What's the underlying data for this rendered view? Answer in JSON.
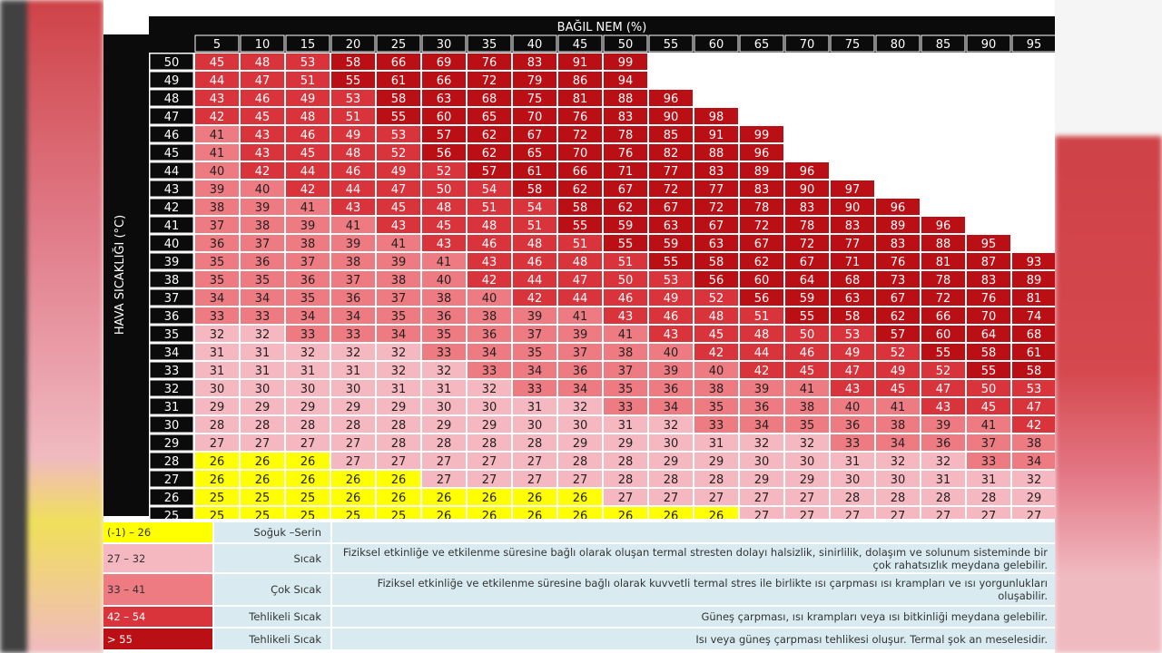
{
  "colors": {
    "yellow": "#ffff00",
    "pink": "#f6b8c0",
    "salmon": "#ee7a82",
    "red": "#d9333b",
    "darkred": "#bb0f16",
    "header_bg": "#0b0b0b",
    "legend_bg": "#d9ebf1"
  },
  "chart_data": {
    "type": "heatmap",
    "xlabel": "BAĞIL NEM (%)",
    "ylabel": "HAVA SICAKLIĞI (°C)",
    "x": [
      5,
      10,
      15,
      20,
      25,
      30,
      35,
      40,
      45,
      50,
      55,
      60,
      65,
      70,
      75,
      80,
      85,
      90,
      95
    ],
    "y": [
      50,
      49,
      48,
      47,
      46,
      45,
      44,
      43,
      42,
      41,
      40,
      39,
      38,
      37,
      36,
      35,
      34,
      33,
      32,
      31,
      30,
      29,
      28,
      27,
      26,
      25
    ],
    "values": [
      [
        45,
        48,
        53,
        58,
        66,
        69,
        76,
        83,
        91,
        99,
        null,
        null,
        null,
        null,
        null,
        null,
        null,
        null,
        null
      ],
      [
        44,
        47,
        51,
        55,
        61,
        66,
        72,
        79,
        86,
        94,
        null,
        null,
        null,
        null,
        null,
        null,
        null,
        null,
        null
      ],
      [
        43,
        46,
        49,
        53,
        58,
        63,
        68,
        75,
        81,
        88,
        96,
        null,
        null,
        null,
        null,
        null,
        null,
        null,
        null
      ],
      [
        42,
        45,
        48,
        51,
        55,
        60,
        65,
        70,
        76,
        83,
        90,
        98,
        null,
        null,
        null,
        null,
        null,
        null,
        null
      ],
      [
        41,
        43,
        46,
        49,
        53,
        57,
        62,
        67,
        72,
        78,
        85,
        91,
        99,
        null,
        null,
        null,
        null,
        null,
        null
      ],
      [
        41,
        43,
        45,
        48,
        52,
        56,
        62,
        65,
        70,
        76,
        82,
        88,
        96,
        null,
        null,
        null,
        null,
        null,
        null
      ],
      [
        40,
        42,
        44,
        46,
        49,
        52,
        57,
        61,
        66,
        71,
        77,
        83,
        89,
        96,
        null,
        null,
        null,
        null,
        null
      ],
      [
        39,
        40,
        42,
        44,
        47,
        50,
        54,
        58,
        62,
        67,
        72,
        77,
        83,
        90,
        97,
        null,
        null,
        null,
        null
      ],
      [
        38,
        39,
        41,
        43,
        45,
        48,
        51,
        54,
        58,
        62,
        67,
        72,
        78,
        83,
        90,
        96,
        null,
        null,
        null
      ],
      [
        37,
        38,
        39,
        41,
        43,
        45,
        48,
        51,
        55,
        59,
        63,
        67,
        72,
        78,
        83,
        89,
        96,
        null,
        null
      ],
      [
        36,
        37,
        38,
        39,
        41,
        43,
        46,
        48,
        51,
        55,
        59,
        63,
        67,
        72,
        77,
        83,
        88,
        95,
        null
      ],
      [
        35,
        36,
        37,
        38,
        39,
        41,
        43,
        46,
        48,
        51,
        55,
        58,
        62,
        67,
        71,
        76,
        81,
        87,
        93
      ],
      [
        35,
        35,
        36,
        37,
        38,
        40,
        42,
        44,
        47,
        50,
        53,
        56,
        60,
        64,
        68,
        73,
        78,
        83,
        89
      ],
      [
        34,
        34,
        35,
        36,
        37,
        38,
        40,
        42,
        44,
        46,
        49,
        52,
        56,
        59,
        63,
        67,
        72,
        76,
        81
      ],
      [
        33,
        33,
        34,
        34,
        35,
        36,
        38,
        39,
        41,
        43,
        46,
        48,
        51,
        55,
        58,
        62,
        66,
        70,
        74
      ],
      [
        32,
        32,
        33,
        33,
        34,
        35,
        36,
        37,
        39,
        41,
        43,
        45,
        48,
        50,
        53,
        57,
        60,
        64,
        68
      ],
      [
        31,
        31,
        32,
        32,
        32,
        33,
        34,
        35,
        37,
        38,
        40,
        42,
        44,
        46,
        49,
        52,
        55,
        58,
        61
      ],
      [
        31,
        31,
        31,
        31,
        32,
        32,
        33,
        34,
        36,
        37,
        39,
        40,
        42,
        45,
        47,
        49,
        52,
        55,
        58
      ],
      [
        30,
        30,
        30,
        30,
        31,
        31,
        32,
        33,
        34,
        35,
        36,
        38,
        39,
        41,
        43,
        45,
        47,
        50,
        53
      ],
      [
        29,
        29,
        29,
        29,
        29,
        30,
        30,
        31,
        32,
        33,
        34,
        35,
        36,
        38,
        40,
        41,
        43,
        45,
        47
      ],
      [
        28,
        28,
        28,
        28,
        28,
        29,
        29,
        30,
        30,
        31,
        32,
        33,
        34,
        35,
        36,
        38,
        39,
        41,
        42
      ],
      [
        27,
        27,
        27,
        27,
        28,
        28,
        28,
        28,
        29,
        29,
        30,
        31,
        32,
        32,
        33,
        34,
        36,
        37,
        38
      ],
      [
        26,
        26,
        26,
        27,
        27,
        27,
        27,
        27,
        28,
        28,
        29,
        29,
        30,
        30,
        31,
        32,
        32,
        33,
        34
      ],
      [
        26,
        26,
        26,
        26,
        26,
        27,
        27,
        27,
        27,
        28,
        28,
        28,
        29,
        29,
        30,
        30,
        31,
        31,
        32
      ],
      [
        25,
        25,
        25,
        26,
        26,
        26,
        26,
        26,
        26,
        27,
        27,
        27,
        27,
        27,
        28,
        28,
        28,
        28,
        29
      ],
      [
        25,
        25,
        25,
        25,
        25,
        26,
        26,
        26,
        26,
        26,
        26,
        26,
        27,
        27,
        27,
        27,
        27,
        27,
        27
      ]
    ]
  },
  "legend": [
    {
      "range": "(-1) – 26",
      "label": "Soğuk –Serin",
      "description": "",
      "color_key": "yellow"
    },
    {
      "range": "27 – 32",
      "label": "Sıcak",
      "description": "Fiziksel etkinliğe ve etkilenme süresine bağlı olarak oluşan termal stresten dolayı halsizlik, sinirlilik, dolaşım ve solunum sisteminde bir çok rahatsızlık meydana gelebilir.",
      "color_key": "pink"
    },
    {
      "range": "33 – 41",
      "label": "Çok Sıcak",
      "description": "Fiziksel etkinliğe ve etkilenme süresine bağlı olarak kuvvetli termal stres ile birlikte ısı çarpması ısı krampları ve ısı yorgunlukları oluşabilir.",
      "color_key": "salmon"
    },
    {
      "range": "42 – 54",
      "label": "Tehlikeli Sıcak",
      "description": "Güneş çarpması, ısı krampları veya ısı bitkinliği meydana gelebilir.",
      "color_key": "red"
    },
    {
      "range": "> 55",
      "label": "Tehlikeli Sıcak",
      "description": "Isı veya güneş çarpması tehlikesi oluşur. Termal şok an meselesidir.",
      "color_key": "darkred"
    }
  ]
}
